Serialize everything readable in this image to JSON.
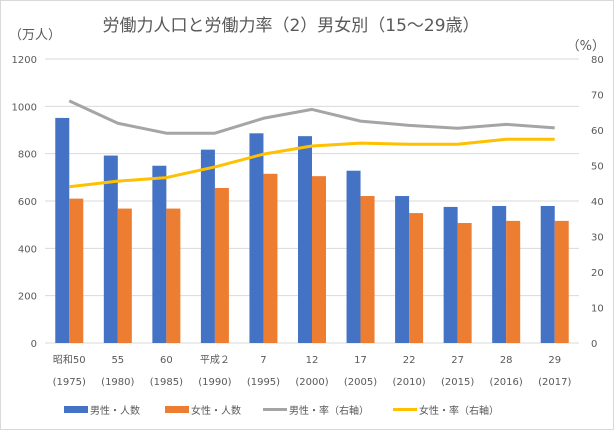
{
  "chart_data": {
    "type": "bar+line",
    "title": "労働力人口と労働力率（2）男女別（15〜29歳）",
    "ylabel_left": "（万人）",
    "ylabel_right": "（%）",
    "ylim_left": [
      0,
      1200
    ],
    "yticks_left": [
      0,
      200,
      400,
      600,
      800,
      1000,
      1200
    ],
    "ylim_right": [
      0,
      80
    ],
    "yticks_right": [
      0,
      10,
      20,
      30,
      40,
      50,
      60,
      70,
      80
    ],
    "grid": true,
    "legend_position": "bottom",
    "categories": [
      [
        "昭和50",
        "(1975)"
      ],
      [
        "55",
        "(1980)"
      ],
      [
        "60",
        "(1985)"
      ],
      [
        "平成２",
        "(1990)"
      ],
      [
        "7",
        "(1995)"
      ],
      [
        "12",
        "(2000)"
      ],
      [
        "17",
        "(2005)"
      ],
      [
        "22",
        "(2010)"
      ],
      [
        "27",
        "(2015)"
      ],
      [
        "28",
        "(2016)"
      ],
      [
        "29",
        "(2017)"
      ]
    ],
    "series": [
      {
        "name": "男性・人数",
        "type": "bar",
        "axis": "left",
        "color": "#4472c4",
        "values": [
          951,
          792,
          749,
          817,
          886,
          874,
          728,
          621,
          575,
          579,
          579
        ]
      },
      {
        "name": "女性・人数",
        "type": "bar",
        "axis": "left",
        "color": "#ed7d31",
        "values": [
          610,
          568,
          568,
          655,
          715,
          705,
          621,
          549,
          507,
          516,
          516
        ]
      },
      {
        "name": "男性・率（右軸）",
        "type": "line",
        "axis": "right",
        "color": "#a5a5a5",
        "values": [
          68.2,
          61.9,
          59.1,
          59.1,
          63.3,
          65.8,
          62.5,
          61.3,
          60.5,
          61.6,
          60.6
        ]
      },
      {
        "name": "女性・率（右軸）",
        "type": "line",
        "axis": "right",
        "color": "#ffc000",
        "values": [
          44.0,
          45.6,
          46.6,
          49.6,
          53.2,
          55.5,
          56.3,
          56.0,
          56.0,
          57.4,
          57.4
        ]
      }
    ]
  }
}
